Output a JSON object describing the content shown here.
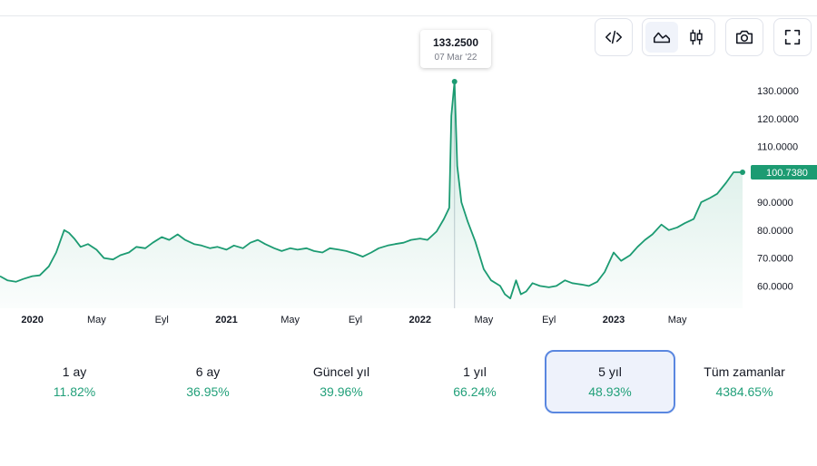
{
  "toolbar": {
    "embed_icon": "code-icon",
    "area_icon": "area-chart-icon",
    "candle_icon": "candlestick-icon",
    "snapshot_icon": "camera-icon",
    "fullscreen_icon": "fullscreen-icon",
    "active_chart_type": "area"
  },
  "tooltip": {
    "value": "133.2500",
    "date": "07 Mar '22"
  },
  "colors": {
    "line": "#1c9b72",
    "accent": "#22a07a",
    "last_label_bg": "#1c9b72",
    "active_border": "#5a87e0"
  },
  "chart_data": {
    "type": "area",
    "y_ticks": [
      "130.0000",
      "120.0000",
      "110.0000",
      "90.0000",
      "80.0000",
      "70.0000",
      "60.0000"
    ],
    "y_tick_values": [
      130,
      120,
      110,
      90,
      80,
      70,
      60
    ],
    "ylim": [
      52,
      143
    ],
    "xlim": [
      "2019-11-01",
      "2023-09-01"
    ],
    "last_value_label": "100.7380",
    "last_value": 100.738,
    "x_ticks": [
      {
        "label": "2020",
        "date": "2020-01-01",
        "bold": true
      },
      {
        "label": "May",
        "date": "2020-05-01",
        "bold": false
      },
      {
        "label": "Eyl",
        "date": "2020-09-01",
        "bold": false
      },
      {
        "label": "2021",
        "date": "2021-01-01",
        "bold": true
      },
      {
        "label": "May",
        "date": "2021-05-01",
        "bold": false
      },
      {
        "label": "Eyl",
        "date": "2021-09-01",
        "bold": false
      },
      {
        "label": "2022",
        "date": "2022-01-01",
        "bold": true
      },
      {
        "label": "May",
        "date": "2022-05-01",
        "bold": false
      },
      {
        "label": "Eyl",
        "date": "2022-09-01",
        "bold": false
      },
      {
        "label": "2023",
        "date": "2023-01-01",
        "bold": true
      },
      {
        "label": "May",
        "date": "2023-05-01",
        "bold": false
      }
    ],
    "x": [
      "2019-11-01",
      "2019-11-15",
      "2019-12-01",
      "2019-12-15",
      "2020-01-01",
      "2020-01-15",
      "2020-02-01",
      "2020-02-15",
      "2020-03-01",
      "2020-03-10",
      "2020-03-20",
      "2020-04-01",
      "2020-04-15",
      "2020-05-01",
      "2020-05-15",
      "2020-06-01",
      "2020-06-15",
      "2020-07-01",
      "2020-07-15",
      "2020-08-01",
      "2020-08-15",
      "2020-09-01",
      "2020-09-15",
      "2020-10-01",
      "2020-10-15",
      "2020-11-01",
      "2020-11-15",
      "2020-12-01",
      "2020-12-15",
      "2021-01-01",
      "2021-01-15",
      "2021-02-01",
      "2021-02-15",
      "2021-03-01",
      "2021-03-15",
      "2021-04-01",
      "2021-04-15",
      "2021-05-01",
      "2021-05-15",
      "2021-06-01",
      "2021-06-15",
      "2021-07-01",
      "2021-07-15",
      "2021-08-01",
      "2021-08-15",
      "2021-09-01",
      "2021-09-15",
      "2021-10-01",
      "2021-10-15",
      "2021-11-01",
      "2021-11-15",
      "2021-12-01",
      "2021-12-15",
      "2022-01-01",
      "2022-01-15",
      "2022-02-01",
      "2022-02-15",
      "2022-02-25",
      "2022-03-01",
      "2022-03-07",
      "2022-03-12",
      "2022-03-20",
      "2022-04-01",
      "2022-04-15",
      "2022-05-01",
      "2022-05-15",
      "2022-06-01",
      "2022-06-10",
      "2022-06-20",
      "2022-07-01",
      "2022-07-10",
      "2022-07-20",
      "2022-08-01",
      "2022-08-15",
      "2022-09-01",
      "2022-09-15",
      "2022-10-01",
      "2022-10-15",
      "2022-11-01",
      "2022-11-15",
      "2022-12-01",
      "2022-12-15",
      "2023-01-01",
      "2023-01-15",
      "2023-02-01",
      "2023-02-15",
      "2023-03-01",
      "2023-03-15",
      "2023-04-01",
      "2023-04-15",
      "2023-05-01",
      "2023-05-15",
      "2023-06-01",
      "2023-06-15",
      "2023-07-01",
      "2023-07-15",
      "2023-08-01",
      "2023-08-15",
      "2023-09-01"
    ],
    "y": [
      63.5,
      62.0,
      61.5,
      62.5,
      63.5,
      63.8,
      67.0,
      72.0,
      80.0,
      79.0,
      77.0,
      74.0,
      75.0,
      73.0,
      70.0,
      69.5,
      71.0,
      72.0,
      74.0,
      73.5,
      75.5,
      77.5,
      76.5,
      78.5,
      76.5,
      75.0,
      74.5,
      73.5,
      74.0,
      73.0,
      74.5,
      73.5,
      75.5,
      76.5,
      75.0,
      73.5,
      72.5,
      73.5,
      73.0,
      73.5,
      72.5,
      72.0,
      73.5,
      73.0,
      72.5,
      71.5,
      70.5,
      72.0,
      73.5,
      74.5,
      75.0,
      75.5,
      76.5,
      77.0,
      76.5,
      79.5,
      84.0,
      88.0,
      121.0,
      133.25,
      103.0,
      90.0,
      83.0,
      76.0,
      66.0,
      62.0,
      60.0,
      57.0,
      55.5,
      62.0,
      57.0,
      58.0,
      61.0,
      60.0,
      59.5,
      60.0,
      62.0,
      61.0,
      60.5,
      60.0,
      61.5,
      65.0,
      72.0,
      69.0,
      71.0,
      74.0,
      76.5,
      78.5,
      82.0,
      80.0,
      81.0,
      82.5,
      84.0,
      90.0,
      91.5,
      93.0,
      97.0,
      100.738,
      100.738
    ]
  },
  "periods": [
    {
      "label": "1 ay",
      "value": "11.82%",
      "active": false
    },
    {
      "label": "6 ay",
      "value": "36.95%",
      "active": false
    },
    {
      "label": "Güncel yıl",
      "value": "39.96%",
      "active": false
    },
    {
      "label": "1 yıl",
      "value": "66.24%",
      "active": false
    },
    {
      "label": "5 yıl",
      "value": "48.93%",
      "active": true
    },
    {
      "label": "Tüm zamanlar",
      "value": "4384.65%",
      "active": false
    }
  ]
}
